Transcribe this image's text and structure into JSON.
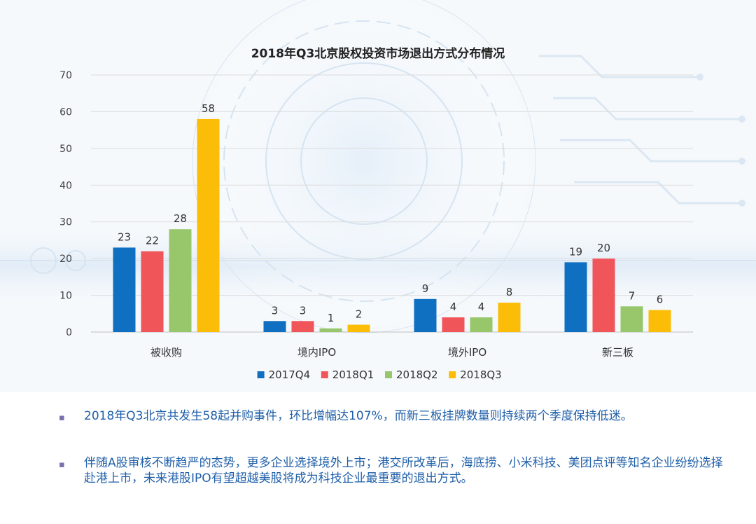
{
  "chart_data": {
    "type": "bar",
    "title": "2018年Q3北京股权投资市场退出方式分布情况",
    "categories": [
      "被收购",
      "境内IPO",
      "境外IPO",
      "新三板"
    ],
    "series": [
      {
        "name": "2017Q4",
        "color": "#0f6fc0",
        "values": [
          23,
          3,
          9,
          19
        ]
      },
      {
        "name": "2018Q1",
        "color": "#f0555a",
        "values": [
          22,
          3,
          4,
          20
        ]
      },
      {
        "name": "2018Q2",
        "color": "#97c76a",
        "values": [
          28,
          1,
          4,
          7
        ]
      },
      {
        "name": "2018Q3",
        "color": "#fbbd08",
        "values": [
          58,
          2,
          8,
          6
        ]
      }
    ],
    "ylim": [
      0,
      70
    ],
    "yticks": [
      0,
      10,
      20,
      30,
      40,
      50,
      60,
      70
    ],
    "xlabel": "",
    "ylabel": "",
    "grid": true,
    "legend": "bottom-center",
    "data_labels": true
  },
  "bullets": [
    {
      "marker": "▪",
      "text": "2018年Q3北京共发生58起并购事件，环比增幅达107%，而新三板挂牌数量则持续两个季度保持低迷。"
    },
    {
      "marker": "▪",
      "text": "伴随A股审核不断趋严的态势，更多企业选择境外上市；港交所改革后，海底捞、小米科技、美团点评等知名企业纷纷选择赴港上市，未来港股IPO有望超越美股将成为科技企业最重要的退出方式。"
    }
  ]
}
